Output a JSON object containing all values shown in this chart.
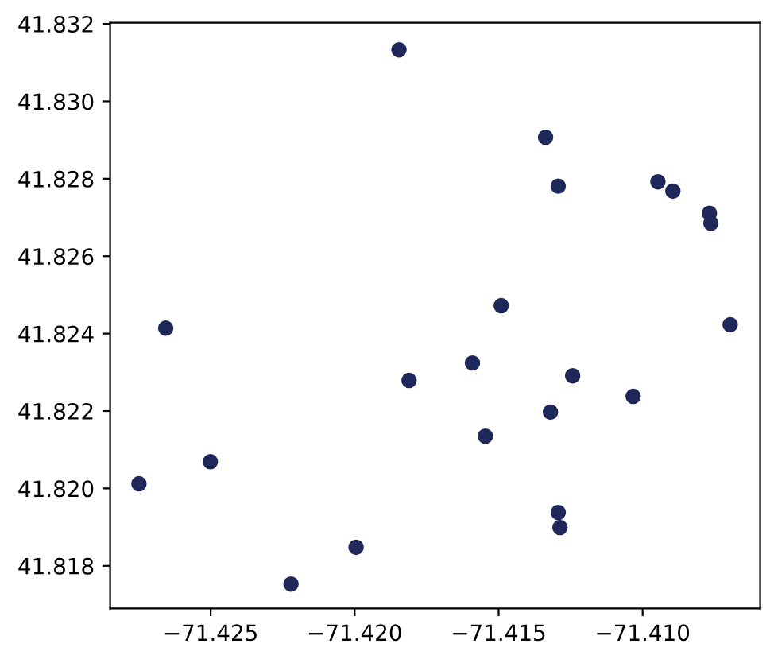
{
  "chart_data": {
    "type": "scatter",
    "x": [
      -71.41846,
      -71.41337,
      -71.41293,
      -71.40947,
      -71.40895,
      -71.40768,
      -71.40763,
      -71.41491,
      -71.40696,
      -71.41591,
      -71.41811,
      -71.41243,
      -71.41033,
      -71.4132,
      -71.41546,
      -71.41293,
      -71.41287,
      -71.42656,
      -71.42501,
      -71.42749,
      -71.41995,
      -71.42221
    ],
    "values": [
      41.83133,
      41.82907,
      41.82781,
      41.82792,
      41.82768,
      41.82711,
      41.82685,
      41.82472,
      41.82423,
      41.82324,
      41.82279,
      41.82291,
      41.82238,
      41.82197,
      41.82135,
      41.81938,
      41.81899,
      41.82414,
      41.82069,
      41.82012,
      41.81848,
      41.81753
    ],
    "color": "#1f285a",
    "marker": "circle",
    "xlim": [
      -71.42849,
      -71.40592
    ],
    "ylim": [
      41.8169,
      41.83203
    ],
    "xticks": [
      {
        "value": -71.425,
        "label": "−71.425"
      },
      {
        "value": -71.42,
        "label": "−71.420"
      },
      {
        "value": -71.415,
        "label": "−71.415"
      },
      {
        "value": -71.41,
        "label": "−71.410"
      }
    ],
    "yticks": [
      41.818,
      {
        "value": 41.82,
        "label": "41.820"
      },
      41.822,
      41.824,
      41.826,
      41.828,
      {
        "value": 41.83,
        "label": "41.830"
      },
      41.832
    ]
  }
}
